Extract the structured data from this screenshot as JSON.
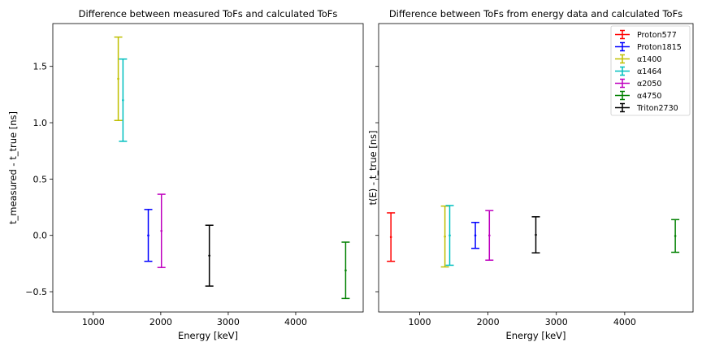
{
  "chart_data": [
    {
      "type": "errorbar",
      "title": "Difference between measured ToFs and calculated ToFs",
      "xlabel": "Energy [keV]",
      "ylabel": "t_measured - t_true [ns]",
      "xlim": [
        400,
        5000
      ],
      "ylim": [
        -0.68,
        1.88
      ],
      "xticks": [
        1000,
        2000,
        3000,
        4000
      ],
      "yticks": [
        -0.5,
        0.0,
        0.5,
        1.0,
        1.5
      ],
      "xtick_labels": [
        "1000",
        "2000",
        "3000",
        "4000"
      ],
      "ytick_labels": [
        "−0.5",
        "0.0",
        "0.5",
        "1.0",
        "1.5"
      ],
      "grid": false,
      "series": [
        {
          "name": "α1400",
          "color": "#bfbf00",
          "x": 1370,
          "y": 1.39,
          "yerr": 0.37
        },
        {
          "name": "α1464",
          "color": "#00bfbf",
          "x": 1440,
          "y": 1.2,
          "yerr": 0.365
        },
        {
          "name": "Proton1815",
          "color": "#0000ff",
          "x": 1815,
          "y": 0.0,
          "yerr": 0.23
        },
        {
          "name": "α2050",
          "color": "#bf00bf",
          "x": 2010,
          "y": 0.04,
          "yerr": 0.325
        },
        {
          "name": "Triton2730",
          "color": "#000000",
          "x": 2720,
          "y": -0.18,
          "yerr": 0.27
        },
        {
          "name": "α4750",
          "color": "#008000",
          "x": 4740,
          "y": -0.31,
          "yerr": 0.25
        }
      ]
    },
    {
      "type": "errorbar",
      "title": "Difference between ToFs from energy data and calculated ToFs",
      "xlabel": "Energy [keV]",
      "ylabel": "t(E) - t_true [ns]",
      "xlim": [
        400,
        5000
      ],
      "ylim": [
        -0.68,
        1.88
      ],
      "xticks": [
        1000,
        2000,
        3000,
        4000
      ],
      "xtick_labels": [
        "1000",
        "2000",
        "3000",
        "4000"
      ],
      "legend_position": "top-right",
      "grid": false,
      "series": [
        {
          "name": "Proton577",
          "color": "#ff0000",
          "x": 580,
          "y": -0.015,
          "yerr": 0.215
        },
        {
          "name": "Proton1815",
          "color": "#0000ff",
          "x": 1815,
          "y": 0.0,
          "yerr": 0.115
        },
        {
          "name": "α1400",
          "color": "#bfbf00",
          "x": 1370,
          "y": -0.01,
          "yerr": 0.27
        },
        {
          "name": "α1464",
          "color": "#00bfbf",
          "x": 1440,
          "y": 0.0,
          "yerr": 0.265
        },
        {
          "name": "α2050",
          "color": "#bf00bf",
          "x": 2020,
          "y": 0.0,
          "yerr": 0.22
        },
        {
          "name": "α4750",
          "color": "#008000",
          "x": 4740,
          "y": -0.005,
          "yerr": 0.145
        },
        {
          "name": "Triton2730",
          "color": "#000000",
          "x": 2700,
          "y": 0.005,
          "yerr": 0.16
        }
      ]
    }
  ]
}
